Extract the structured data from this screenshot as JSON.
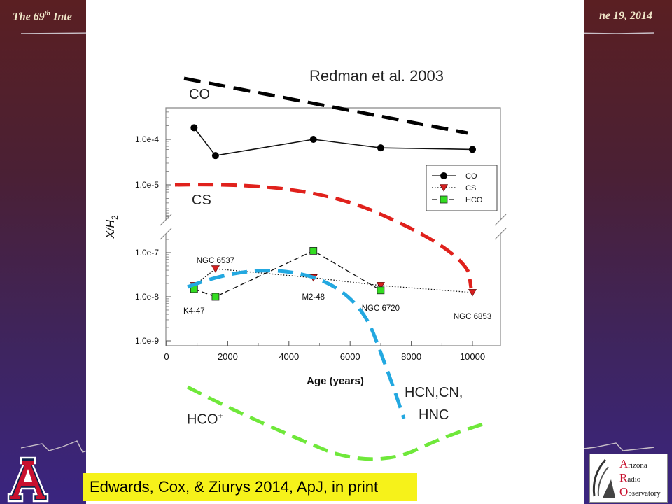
{
  "header": {
    "left_text": "The 69",
    "left_sup": "th",
    "left_rest": " Inte",
    "right_text": "ne 19, 2014"
  },
  "overlay": {
    "reference": "Redman et al. 2003",
    "label_co": "CO",
    "label_cs": "CS",
    "label_hcn_line1": "HCN,CN,",
    "label_hcn_line2": "HNC",
    "label_hco": "HCO",
    "label_hco_sup": "+"
  },
  "citation": "Edwards, Cox, & Ziurys 2014, ApJ, in print",
  "logo": {
    "aro_line1_cap": "A",
    "aro_line1": "rizona",
    "aro_line2_cap": "R",
    "aro_line2": "adio",
    "aro_line3_cap": "O",
    "aro_line3": "bservatory"
  },
  "colors": {
    "co_dash": "#000000",
    "cs_dash": "#e0211c",
    "hcn_dash": "#23a8e0",
    "hco_dash": "#6fe83a",
    "cs_marker": "#d42020",
    "hco_marker": "#33dd22",
    "citation_bg": "#f6f21a"
  },
  "chart_data": {
    "type": "scatter",
    "xlabel": "Age (years)",
    "ylabel": "X/H",
    "ylabel_sub": "2",
    "xlim": [
      0,
      11000
    ],
    "x_ticks": [
      0,
      2000,
      4000,
      6000,
      8000,
      10000
    ],
    "y_ticks_upper": [
      "1.0e-4",
      "1.0e-5"
    ],
    "y_ticks_lower": [
      "1.0e-7",
      "1.0e-8",
      "1.0e-9"
    ],
    "legend_position": "right",
    "series": [
      {
        "name": "CO",
        "style": "solid",
        "marker": "circle",
        "x": [
          900,
          1600,
          4800,
          7000,
          10000
        ],
        "y": [
          0.00018,
          4.4e-05,
          0.0001,
          6.5e-05,
          6e-05
        ]
      },
      {
        "name": "CS",
        "style": "dotted",
        "marker": "triangle-down",
        "x": [
          900,
          1600,
          4800,
          7000,
          10000
        ],
        "y": [
          1.8e-08,
          4.3e-08,
          2.7e-08,
          1.8e-08,
          1.25e-08
        ]
      },
      {
        "name": "HCO",
        "name_sup": "+",
        "style": "dashed",
        "marker": "square",
        "x": [
          900,
          1600,
          4800,
          7000,
          10000
        ],
        "y": [
          1.5e-08,
          1e-08,
          1.1e-07,
          1.4e-08,
          null
        ]
      }
    ],
    "annotations": [
      {
        "text": "NGC 6537",
        "x": 1600
      },
      {
        "text": "K4-47",
        "x": 900
      },
      {
        "text": "M2-48",
        "x": 4800
      },
      {
        "text": "NGC 6720",
        "x": 7000
      },
      {
        "text": "NGC 6853",
        "x": 10000
      }
    ]
  }
}
